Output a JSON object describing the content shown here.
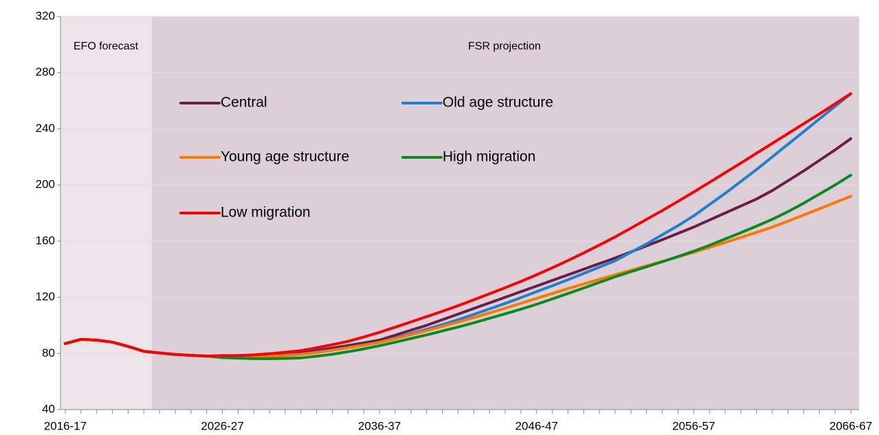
{
  "chart_data": {
    "type": "line",
    "annotations": [
      "EFO forecast",
      "FSR projection"
    ],
    "categories": [
      "2016-17",
      null,
      null,
      null,
      null,
      null,
      null,
      null,
      null,
      null,
      "2026-27",
      null,
      null,
      null,
      null,
      null,
      null,
      null,
      null,
      null,
      "2036-37",
      null,
      null,
      null,
      null,
      null,
      null,
      null,
      null,
      null,
      "2046-47",
      null,
      null,
      null,
      null,
      null,
      null,
      null,
      null,
      null,
      "2056-57",
      null,
      null,
      null,
      null,
      null,
      null,
      null,
      null,
      null,
      "2066-67"
    ],
    "ylim": [
      40,
      320
    ],
    "yticks": [
      40,
      80,
      120,
      160,
      200,
      240,
      280,
      320
    ],
    "grid": true,
    "series": [
      {
        "name": "Central",
        "color": "#6b1f48",
        "values": [
          87,
          90,
          89.5,
          88,
          85,
          81.5,
          80.3,
          79.3,
          78.6,
          78.1,
          78,
          78,
          78.3,
          78.8,
          79.5,
          80.5,
          82,
          83.8,
          85.6,
          87.5,
          89.5,
          93,
          96.5,
          100,
          104,
          108,
          112,
          116,
          120,
          124,
          128,
          132,
          136,
          140,
          144,
          148,
          152.3,
          156.6,
          161,
          165.5,
          170,
          175,
          180,
          185,
          190,
          196,
          203,
          210,
          217.5,
          225,
          233
        ]
      },
      {
        "name": "Old age structure",
        "color": "#1f7fd1",
        "values": [
          87,
          90,
          89.5,
          88,
          85,
          81.5,
          80.3,
          79.3,
          78.6,
          78.1,
          77.5,
          77.5,
          77.8,
          78.3,
          78.9,
          79.6,
          81,
          82.5,
          84.2,
          86,
          88,
          91,
          94,
          97.2,
          100.5,
          104,
          107.8,
          111.7,
          115.6,
          119.7,
          124,
          128.2,
          132.5,
          137,
          141.5,
          146,
          152,
          158,
          164.5,
          171,
          178,
          186,
          194,
          202.5,
          211,
          220,
          229,
          238,
          247,
          256,
          265
        ]
      },
      {
        "name": "Young age structure",
        "color": "#ff7700",
        "values": [
          87,
          90,
          89.5,
          88,
          85,
          81.5,
          80.3,
          79.3,
          78.6,
          78.1,
          77.5,
          77.3,
          77.4,
          77.8,
          78.4,
          79.2,
          80.6,
          82.2,
          84,
          85.8,
          87.8,
          90.5,
          93.3,
          96.2,
          99.2,
          102.3,
          105.5,
          108.8,
          112.2,
          115.7,
          119.2,
          122.7,
          126.2,
          129.5,
          132.8,
          136,
          139.2,
          142.4,
          145.6,
          148.8,
          152,
          155.5,
          159,
          162.6,
          166.2,
          170,
          174.2,
          178.6,
          183,
          187.5,
          192
        ]
      },
      {
        "name": "High migration",
        "color": "#0a8a20",
        "values": [
          87,
          90,
          89.5,
          88,
          85,
          81.5,
          80.3,
          79.3,
          78.6,
          78.1,
          77,
          76.6,
          76.3,
          76.2,
          76.4,
          76.8,
          78,
          79.4,
          81.2,
          83.2,
          85.5,
          88,
          90.6,
          93.2,
          96,
          98.8,
          101.8,
          105,
          108.2,
          111.5,
          115,
          118.8,
          122.7,
          126.6,
          130.6,
          134.6,
          138.2,
          141.7,
          145.3,
          149,
          152.8,
          157,
          161.5,
          166,
          170.7,
          175.5,
          181,
          187,
          193.5,
          200,
          207
        ]
      },
      {
        "name": "Low migration",
        "color": "#ff0000",
        "values": [
          87,
          90,
          89.5,
          88,
          85,
          81.5,
          80.3,
          79.3,
          78.6,
          78.1,
          78.5,
          78.5,
          79,
          79.8,
          80.8,
          82,
          84,
          86.2,
          88.6,
          91.7,
          95,
          98.7,
          102.4,
          106.2,
          110,
          114,
          118.2,
          122.5,
          126.8,
          131.3,
          136,
          141,
          146.2,
          151.6,
          157.2,
          163,
          169.2,
          175.5,
          181.8,
          188.3,
          195,
          201.8,
          208.7,
          215.6,
          222.6,
          229.6,
          236.6,
          243.6,
          250.6,
          257.8,
          265
        ]
      }
    ]
  }
}
